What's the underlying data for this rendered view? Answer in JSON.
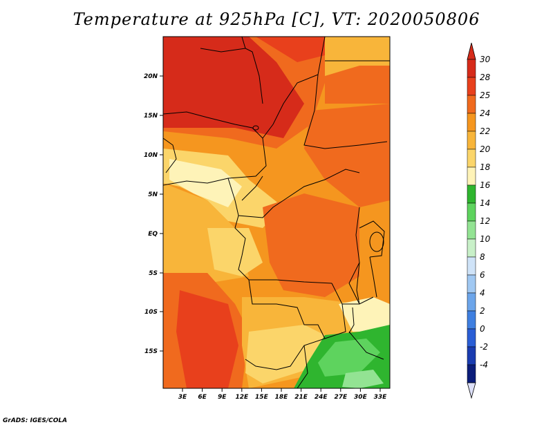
{
  "title": "Temperature at 925hPa [C], VT: 2020050806",
  "credit": "GrADS: IGES/COLA",
  "map": {
    "lat_ticks": [
      "20N",
      "15N",
      "10N",
      "5N",
      "EQ",
      "5S",
      "10S",
      "15S"
    ],
    "lon_ticks": [
      "3E",
      "6E",
      "9E",
      "12E",
      "15E",
      "18E",
      "21E",
      "24E",
      "27E",
      "30E",
      "33E"
    ]
  },
  "colorbar": {
    "labels": [
      "30",
      "28",
      "25",
      "24",
      "22",
      "20",
      "18",
      "16",
      "14",
      "12",
      "10",
      "8",
      "6",
      "4",
      "2",
      "0",
      "-2",
      "-4"
    ],
    "colors": [
      "#d62b1a",
      "#e8401c",
      "#f06a1e",
      "#f5961f",
      "#f8b53a",
      "#fbd56a",
      "#fef3b8",
      "#2fb52f",
      "#5ed35e",
      "#93e393",
      "#c8f0c8",
      "#cfe3f8",
      "#a0c8f2",
      "#6ca5ea",
      "#3f7fe0",
      "#2a5ed5",
      "#1a3cb0",
      "#0b1d7a"
    ],
    "top_color": "#d62b1a",
    "bottom_color": "#dde0f8"
  }
}
